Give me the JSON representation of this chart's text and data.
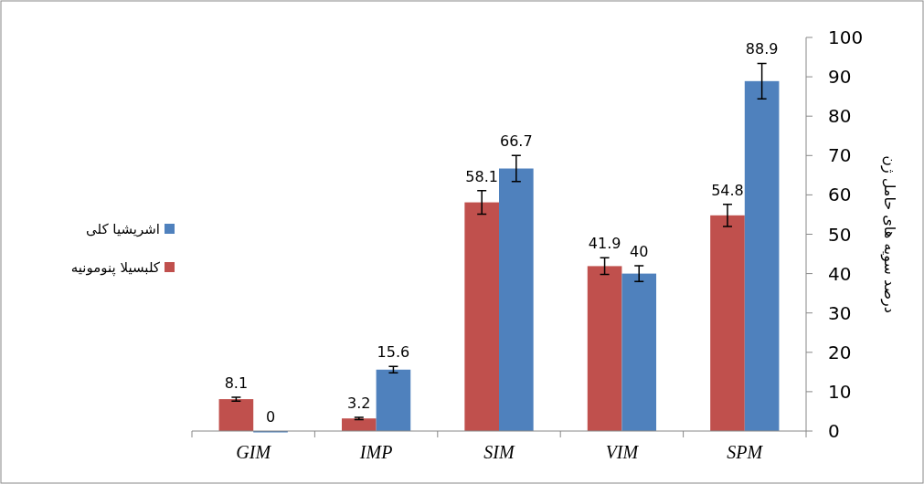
{
  "chart_data": {
    "type": "bar",
    "ylabel": "درصد سویه های حامل ژن",
    "categories": [
      "GIM",
      "IMP",
      "SIM",
      "VIM",
      "SPM"
    ],
    "series": [
      {
        "name": "کلبسیلا پنومونیه",
        "color": "#c0504d",
        "values": [
          8.1,
          3.2,
          58.1,
          41.9,
          54.8
        ],
        "errors": [
          0.5,
          0.3,
          3,
          2.1,
          2.8
        ]
      },
      {
        "name": "اشریشیا کلی",
        "color": "#4f81bd",
        "values": [
          0,
          15.6,
          66.7,
          40,
          88.9
        ],
        "errors": [
          null,
          0.8,
          3.3,
          2,
          4.5
        ]
      }
    ],
    "ylim": [
      0,
      100
    ],
    "yticks": [
      0,
      10,
      20,
      30,
      40,
      50,
      60,
      70,
      80,
      90,
      100
    ],
    "data_labels": true,
    "legend": "left",
    "grid": false
  }
}
